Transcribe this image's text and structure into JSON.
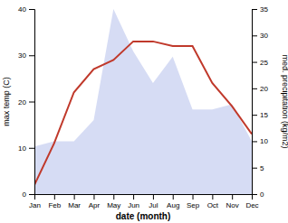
{
  "chart_data": {
    "type": "line",
    "xlabel": "date (month)",
    "ylabel": "max temp (C)",
    "y2label": "med. precipitation (kg/m2)",
    "categories": [
      "Jan",
      "Feb",
      "Mar",
      "Apr",
      "May",
      "Jun",
      "Jul",
      "Aug",
      "Sep",
      "Oct",
      "Nov",
      "Dec"
    ],
    "series": [
      {
        "type": "area",
        "axis": "y2",
        "color": "#c5cdf0",
        "values": [
          9,
          10,
          10,
          14,
          35,
          27,
          21,
          26,
          16,
          16,
          17,
          10
        ]
      },
      {
        "type": "line",
        "color": "#c0392b",
        "values": [
          2,
          11,
          22,
          27,
          29,
          33,
          33,
          32,
          32,
          24,
          19,
          13
        ]
      }
    ],
    "ylim": [
      0,
      40
    ],
    "yticks": [
      0,
      10,
      20,
      30,
      40
    ],
    "y2lim": [
      0,
      35
    ],
    "y2ticks": [
      0,
      5,
      10,
      15,
      20,
      25,
      30,
      35
    ],
    "grid": false
  }
}
